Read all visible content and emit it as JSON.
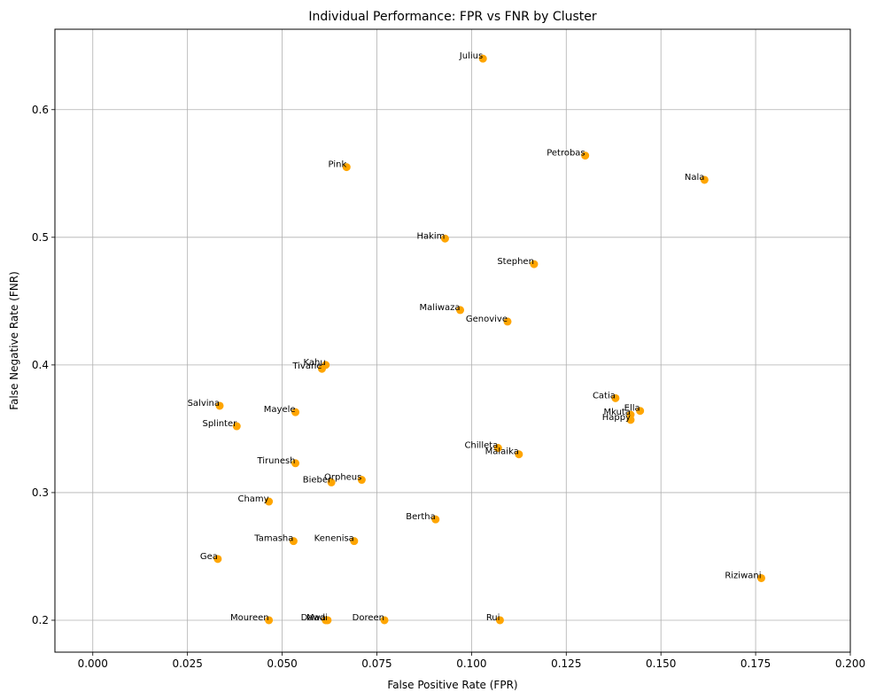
{
  "chart_data": {
    "type": "scatter",
    "title": "Individual Performance: FPR vs FNR by Cluster",
    "xlabel": "False Positive Rate (FPR)",
    "ylabel": "False Negative Rate (FNR)",
    "xlim": [
      -0.01,
      0.2
    ],
    "ylim": [
      0.175,
      0.663
    ],
    "x_ticks": [
      "0.000",
      "0.025",
      "0.050",
      "0.075",
      "0.100",
      "0.125",
      "0.150",
      "0.175",
      "0.200"
    ],
    "x_tick_values": [
      0.0,
      0.025,
      0.05,
      0.075,
      0.1,
      0.125,
      0.15,
      0.175,
      0.2
    ],
    "y_ticks": [
      "0.2",
      "0.3",
      "0.4",
      "0.5",
      "0.6"
    ],
    "y_tick_values": [
      0.2,
      0.3,
      0.4,
      0.5,
      0.6
    ],
    "grid": true,
    "marker_color": "#FFA500",
    "points": [
      {
        "name": "Julius",
        "x": 0.103,
        "y": 0.64
      },
      {
        "name": "Petrobas",
        "x": 0.13,
        "y": 0.564
      },
      {
        "name": "Pink",
        "x": 0.067,
        "y": 0.555
      },
      {
        "name": "Nala",
        "x": 0.1615,
        "y": 0.545
      },
      {
        "name": "Hakim",
        "x": 0.093,
        "y": 0.499
      },
      {
        "name": "Stephen",
        "x": 0.1165,
        "y": 0.479
      },
      {
        "name": "Maliwaza",
        "x": 0.097,
        "y": 0.443
      },
      {
        "name": "Genovive",
        "x": 0.1095,
        "y": 0.434
      },
      {
        "name": "Kahu",
        "x": 0.0615,
        "y": 0.4
      },
      {
        "name": "Tivane",
        "x": 0.0605,
        "y": 0.397
      },
      {
        "name": "Salvina",
        "x": 0.0335,
        "y": 0.368
      },
      {
        "name": "Mayele",
        "x": 0.0535,
        "y": 0.363
      },
      {
        "name": "Catia",
        "x": 0.138,
        "y": 0.374
      },
      {
        "name": "Ella",
        "x": 0.1445,
        "y": 0.364
      },
      {
        "name": "Mkuta",
        "x": 0.142,
        "y": 0.361
      },
      {
        "name": "Happy",
        "x": 0.142,
        "y": 0.357
      },
      {
        "name": "Splinter",
        "x": 0.038,
        "y": 0.352
      },
      {
        "name": "Chilleta",
        "x": 0.107,
        "y": 0.335
      },
      {
        "name": "Malaika",
        "x": 0.1125,
        "y": 0.33
      },
      {
        "name": "Tirunesh",
        "x": 0.0535,
        "y": 0.323
      },
      {
        "name": "Orpheus",
        "x": 0.071,
        "y": 0.31
      },
      {
        "name": "Bieber",
        "x": 0.063,
        "y": 0.308
      },
      {
        "name": "Chamy",
        "x": 0.0465,
        "y": 0.293
      },
      {
        "name": "Bertha",
        "x": 0.0905,
        "y": 0.279
      },
      {
        "name": "Tamasha",
        "x": 0.053,
        "y": 0.262
      },
      {
        "name": "Kenenisa",
        "x": 0.069,
        "y": 0.262
      },
      {
        "name": "Gea",
        "x": 0.033,
        "y": 0.248
      },
      {
        "name": "Riziwani",
        "x": 0.1765,
        "y": 0.233
      },
      {
        "name": "Moureen",
        "x": 0.0465,
        "y": 0.2
      },
      {
        "name": "Dawa",
        "x": 0.0615,
        "y": 0.2
      },
      {
        "name": "Madi",
        "x": 0.062,
        "y": 0.2
      },
      {
        "name": "Doreen",
        "x": 0.077,
        "y": 0.2
      },
      {
        "name": "Rui",
        "x": 0.1075,
        "y": 0.2
      }
    ]
  }
}
